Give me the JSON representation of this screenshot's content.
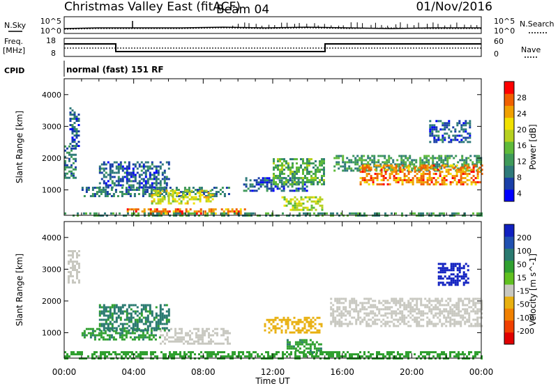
{
  "header": {
    "station": "Christmas Valley East (fitACF)",
    "beam": "Beam 04",
    "date": "01/Nov/2016"
  },
  "strip_panels": {
    "nsky_label": "N.Sky",
    "nsearch_label": "N.Search",
    "count_ticks": [
      "10^5",
      "10^0"
    ],
    "freq_label": "Freq.",
    "freq_unit": "[MHz]",
    "freq_ticks": [
      "18",
      "8"
    ],
    "nave_label": "Nave",
    "nave_ticks": [
      "60",
      "0"
    ],
    "cpid_label": "CPID",
    "cpid_value": "normal (fast) 151 RF"
  },
  "colors": {
    "power_scale": [
      "#0000ff",
      "#1a3fa8",
      "#2f7a7a",
      "#3f9a5a",
      "#5fba3a",
      "#b6d020",
      "#f0e000",
      "#f0a000",
      "#f06000",
      "#ff0000"
    ],
    "velocity_scale": [
      "#1020c0",
      "#2050b0",
      "#2a7a70",
      "#30a030",
      "#60c020",
      "#c8c8c0",
      "#e8b010",
      "#f08000",
      "#f04000",
      "#e00000"
    ]
  },
  "chart_data": [
    {
      "type": "heatmap",
      "quantity": "Power",
      "ylabel": "Slant Range [km]",
      "xlabel": "Time UT",
      "xlim": [
        0,
        24
      ],
      "ylim": [
        200,
        4500
      ],
      "x_ticks": [
        "00:00",
        "04:00",
        "08:00",
        "12:00",
        "16:00",
        "20:00",
        "00:00"
      ],
      "y_ticks": [
        1000,
        2000,
        3000,
        4000
      ],
      "colorbar": {
        "label": "Power [dB]",
        "ticks": [
          4,
          8,
          12,
          16,
          20,
          24,
          28
        ]
      },
      "regions": [
        {
          "t0": 3.6,
          "t1": 10.5,
          "r0": 250,
          "r1": 420,
          "db": 26
        },
        {
          "t0": 0.0,
          "t1": 24.0,
          "r0": 200,
          "r1": 290,
          "db": 12
        },
        {
          "t0": 1.0,
          "t1": 9.5,
          "r0": 800,
          "r1": 1100,
          "db": 10
        },
        {
          "t0": 5.0,
          "t1": 8.5,
          "r0": 600,
          "r1": 1000,
          "db": 20
        },
        {
          "t0": 2.0,
          "t1": 6.0,
          "r0": 1100,
          "r1": 1900,
          "db": 8
        },
        {
          "t0": 10.3,
          "t1": 14.0,
          "r0": 1000,
          "r1": 1400,
          "db": 8
        },
        {
          "t0": 12.0,
          "t1": 15.0,
          "r0": 1200,
          "r1": 2000,
          "db": 14
        },
        {
          "t0": 12.5,
          "t1": 14.8,
          "r0": 350,
          "r1": 800,
          "db": 18
        },
        {
          "t0": 15.5,
          "t1": 24.0,
          "r0": 1600,
          "r1": 2100,
          "db": 12
        },
        {
          "t0": 17.0,
          "t1": 24.0,
          "r0": 1200,
          "r1": 1800,
          "db": 26
        },
        {
          "t0": 0.0,
          "t1": 0.7,
          "r0": 1400,
          "r1": 2400,
          "db": 10
        },
        {
          "t0": 0.3,
          "t1": 0.9,
          "r0": 2400,
          "r1": 3600,
          "db": 8
        },
        {
          "t0": 21.0,
          "t1": 23.3,
          "r0": 2500,
          "r1": 3200,
          "db": 8
        }
      ]
    },
    {
      "type": "heatmap",
      "quantity": "Velocity",
      "ylabel": "Slant Range [km]",
      "xlabel": "Time UT",
      "xlim": [
        0,
        24
      ],
      "ylim": [
        200,
        4500
      ],
      "x_ticks": [
        "00:00",
        "04:00",
        "08:00",
        "12:00",
        "16:00",
        "20:00",
        "00:00"
      ],
      "y_ticks": [
        1000,
        2000,
        3000,
        4000
      ],
      "colorbar": {
        "label": "Velocity [m s^-1]",
        "ticks": [
          200,
          100,
          50,
          15,
          -15,
          -50,
          -100,
          -200
        ]
      },
      "regions": [
        {
          "t0": 0.0,
          "t1": 24.0,
          "r0": 200,
          "r1": 420,
          "v": 30
        },
        {
          "t0": 1.0,
          "t1": 5.5,
          "r0": 800,
          "r1": 1150,
          "v": 40
        },
        {
          "t0": 5.5,
          "t1": 9.5,
          "r0": 650,
          "r1": 1150,
          "v": 0
        },
        {
          "t0": 2.0,
          "t1": 6.0,
          "r0": 1100,
          "r1": 1900,
          "v": 60
        },
        {
          "t0": 0.2,
          "t1": 0.9,
          "r0": 2600,
          "r1": 3600,
          "v": 0
        },
        {
          "t0": 11.5,
          "t1": 14.8,
          "r0": 1000,
          "r1": 1500,
          "v": -80
        },
        {
          "t0": 12.8,
          "t1": 14.8,
          "r0": 350,
          "r1": 800,
          "v": 40
        },
        {
          "t0": 15.3,
          "t1": 24.0,
          "r0": 1200,
          "r1": 2100,
          "v": 0
        },
        {
          "t0": 21.5,
          "t1": 23.3,
          "r0": 2500,
          "r1": 3200,
          "v": 220
        }
      ]
    }
  ]
}
